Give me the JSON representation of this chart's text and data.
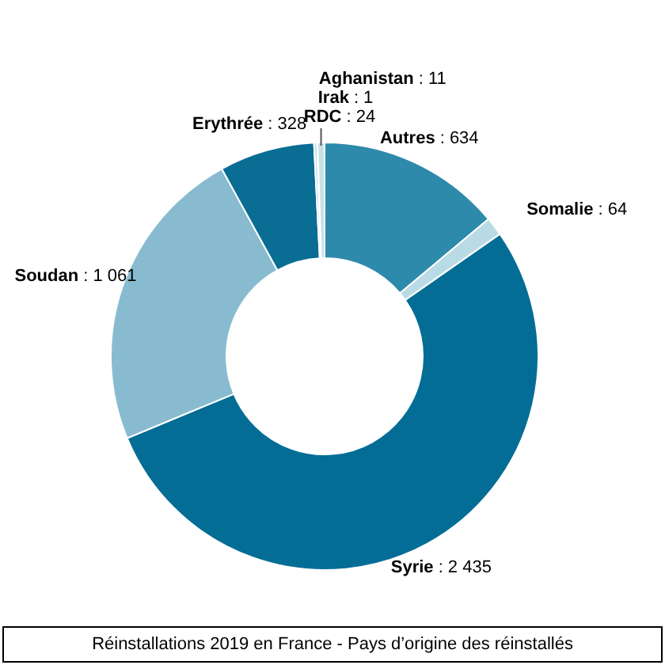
{
  "chart_data": {
    "type": "donut",
    "title": "Réinstallations 2019 en France - Pays d’origine des réinstallés",
    "categories": [
      "Autres",
      "Somalie",
      "Syrie",
      "Soudan",
      "Erythrée",
      "Aghanistan",
      "Irak",
      "RDC"
    ],
    "values": [
      634,
      64,
      2435,
      1061,
      328,
      11,
      1,
      24
    ],
    "value_labels": [
      ": 634",
      ": 64",
      ": 2 435",
      ": 1 061",
      ": 328",
      ": 11",
      ": 1",
      ": 24"
    ],
    "colors": [
      "#2e8aab",
      "#b9dbe6",
      "#036d95",
      "#88bbd0",
      "#0a6d93",
      "#c6e1ea",
      "#c6e1ea",
      "#c6e1ea"
    ]
  }
}
